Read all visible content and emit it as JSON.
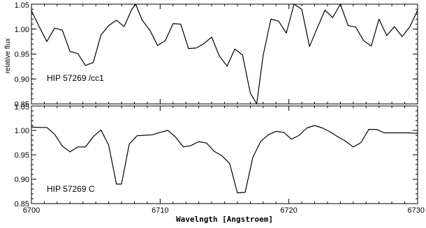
{
  "chart_data": [
    {
      "type": "line",
      "panel_label": "HIP 57269 /cc1",
      "ylabel": "relative flux",
      "xlim": [
        6700,
        6730
      ],
      "ylim": [
        0.85,
        1.05
      ],
      "y_ticks": [
        "0.85",
        "0.90",
        "0.95",
        "1.00",
        "1.05"
      ],
      "x_ticks": [],
      "series": [
        {
          "x": [
            6700.0,
            6700.6,
            6701.2,
            6701.8,
            6702.4,
            6703.0,
            6703.6,
            6704.2,
            6704.8,
            6705.4,
            6706.0,
            6706.6,
            6707.2,
            6707.8,
            6708.1,
            6708.6,
            6709.2,
            6709.8,
            6710.4,
            6711.0,
            6711.6,
            6712.2,
            6712.8,
            6713.4,
            6714.0,
            6714.6,
            6715.2,
            6715.8,
            6716.4,
            6717.0,
            6717.5,
            6718.0,
            6718.6,
            6719.2,
            6719.8,
            6720.4,
            6721.0,
            6721.6,
            6722.2,
            6722.8,
            6723.4,
            6724.0,
            6724.6,
            6725.2,
            6725.8,
            6726.4,
            6727.0,
            6727.6,
            6728.2,
            6728.8,
            6729.4,
            6730.0
          ],
          "y": [
            1.037,
            1.005,
            0.975,
            1.002,
            0.998,
            0.955,
            0.951,
            0.927,
            0.933,
            0.988,
            1.007,
            1.018,
            1.005,
            1.04,
            1.053,
            1.018,
            0.998,
            0.967,
            0.977,
            1.011,
            1.01,
            0.961,
            0.962,
            0.971,
            0.984,
            0.946,
            0.926,
            0.96,
            0.948,
            0.872,
            0.835,
            0.947,
            1.02,
            1.016,
            0.992,
            1.05,
            1.04,
            0.965,
            1.002,
            1.038,
            1.023,
            1.06,
            1.007,
            1.004,
            0.977,
            0.966,
            1.02,
            0.987,
            1.005,
            0.985,
            1.005,
            1.038
          ]
        }
      ]
    },
    {
      "type": "line",
      "panel_label": "HIP 57269 C",
      "xlabel": "Wavelngth [Angstroem]",
      "xlim": [
        6700,
        6730
      ],
      "ylim": [
        0.85,
        1.05
      ],
      "y_ticks": [
        "0.85",
        "0.90",
        "0.95",
        "1.00",
        "1.05"
      ],
      "x_ticks": [
        "6700",
        "6710",
        "6720",
        "6730"
      ],
      "series": [
        {
          "x": [
            6700.0,
            6700.6,
            6701.2,
            6701.8,
            6702.4,
            6703.0,
            6703.6,
            6704.2,
            6704.8,
            6705.4,
            6706.0,
            6706.6,
            6707.0,
            6707.6,
            6708.2,
            6708.8,
            6709.4,
            6710.0,
            6710.6,
            6711.2,
            6711.8,
            6712.4,
            6713.0,
            6713.6,
            6714.2,
            6714.8,
            6715.4,
            6716.0,
            6716.6,
            6717.2,
            6717.8,
            6718.4,
            6719.0,
            6719.6,
            6720.2,
            6720.8,
            6721.4,
            6722.0,
            6722.6,
            6723.2,
            6723.8,
            6724.4,
            6725.0,
            6725.6,
            6726.2,
            6726.8,
            6727.4,
            6728.0,
            6728.6,
            6729.2,
            6729.8,
            6730.0
          ],
          "y": [
            1.007,
            1.006,
            1.006,
            0.992,
            0.968,
            0.956,
            0.966,
            0.966,
            0.987,
            1.001,
            0.97,
            0.89,
            0.89,
            0.972,
            0.989,
            0.99,
            0.991,
            0.996,
            1.0,
            0.986,
            0.966,
            0.969,
            0.977,
            0.974,
            0.957,
            0.948,
            0.932,
            0.872,
            0.873,
            0.945,
            0.977,
            0.991,
            0.998,
            0.996,
            0.982,
            0.99,
            1.005,
            1.01,
            1.005,
            0.997,
            0.987,
            0.978,
            0.966,
            0.975,
            1.002,
            1.002,
            0.995,
            0.995,
            0.995,
            0.995,
            0.994,
            0.995
          ]
        }
      ]
    }
  ]
}
